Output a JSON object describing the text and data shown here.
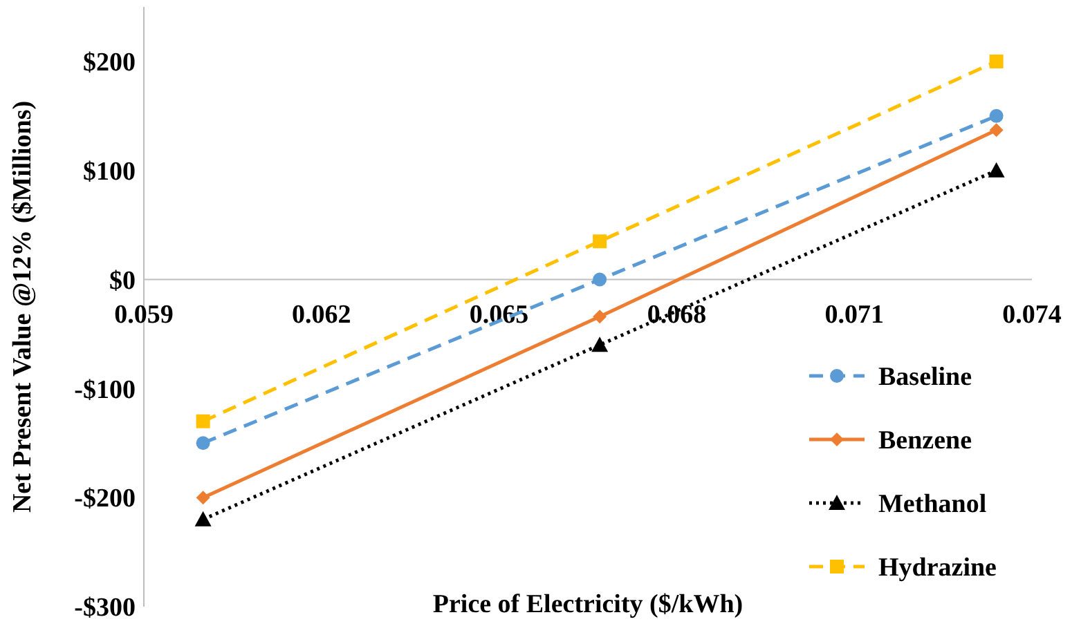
{
  "chart_data": {
    "type": "line",
    "xlabel": "Price of Electricity ($/kWh)",
    "ylabel": "Net Present Value @12% ($Millions)",
    "x": [
      0.06,
      0.0667,
      0.0734
    ],
    "xlim": [
      0.059,
      0.074
    ],
    "xticks": [
      0.059,
      0.062,
      0.065,
      0.068,
      0.071,
      0.074
    ],
    "ylim": [
      -300,
      250
    ],
    "yticks": [
      {
        "value": -300,
        "label": "-$300"
      },
      {
        "value": -200,
        "label": "-$200"
      },
      {
        "value": -100,
        "label": "-$100"
      },
      {
        "value": 0,
        "label": "$0"
      },
      {
        "value": 100,
        "label": "$100"
      },
      {
        "value": 200,
        "label": "$200"
      }
    ],
    "grid": false,
    "legend": "bottom right",
    "series": [
      {
        "name": "Baseline",
        "color": "#5b9bd5",
        "values": [
          -150,
          0,
          150
        ],
        "marker": "circle",
        "line_style": "dashed"
      },
      {
        "name": "Benzene",
        "color": "#ed7d31",
        "values": [
          -200,
          -34,
          137
        ],
        "marker": "diamond",
        "line_style": "solid"
      },
      {
        "name": "Methanol",
        "color": "#000000",
        "values": [
          -220,
          -60,
          100
        ],
        "marker": "triangle",
        "line_style": "dotted"
      },
      {
        "name": "Hydrazine",
        "color": "#ffc000",
        "values": [
          -130,
          35,
          200
        ],
        "marker": "square",
        "line_style": "dashed"
      }
    ]
  }
}
